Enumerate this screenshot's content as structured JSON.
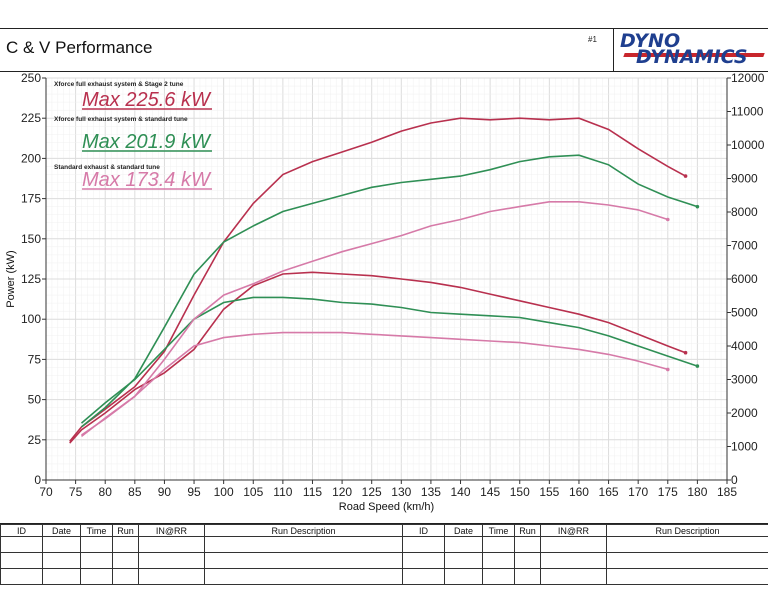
{
  "header": {
    "title": "C & V Performance",
    "run_number": "#1",
    "logo_line1": "DYNO",
    "logo_line2": "DYNAMICS"
  },
  "chart_data": {
    "type": "line",
    "title": "",
    "xlabel": "Road Speed (km/h)",
    "ylabel": "Power (kW)",
    "xlim": [
      70,
      185
    ],
    "ylim": [
      0,
      250
    ],
    "y2lim": [
      0,
      12000
    ],
    "x_ticks": [
      70,
      75,
      80,
      85,
      90,
      95,
      100,
      105,
      110,
      115,
      120,
      125,
      130,
      135,
      140,
      145,
      150,
      155,
      160,
      165,
      170,
      175,
      180,
      185
    ],
    "y_ticks": [
      0,
      25,
      50,
      75,
      100,
      125,
      150,
      175,
      200,
      225,
      250
    ],
    "y2_ticks": [
      0,
      1000,
      2000,
      3000,
      4000,
      5000,
      6000,
      7000,
      8000,
      9000,
      10000,
      11000,
      12000
    ],
    "grid": true,
    "legend": "top-left",
    "series": [
      {
        "name": "Xforce full exhaust system & Stage 2 tune",
        "max_label": "Max 225.6 kW",
        "color": "#b8304e",
        "power": [
          [
            74,
            24
          ],
          [
            76,
            33
          ],
          [
            80,
            44
          ],
          [
            85,
            58
          ],
          [
            90,
            80
          ],
          [
            95,
            115
          ],
          [
            100,
            148
          ],
          [
            105,
            172
          ],
          [
            110,
            190
          ],
          [
            115,
            198
          ],
          [
            120,
            204
          ],
          [
            125,
            210
          ],
          [
            130,
            217
          ],
          [
            135,
            222
          ],
          [
            140,
            225
          ],
          [
            145,
            224
          ],
          [
            150,
            225
          ],
          [
            155,
            224
          ],
          [
            160,
            225
          ],
          [
            165,
            218
          ],
          [
            170,
            206
          ],
          [
            175,
            195
          ],
          [
            178,
            189
          ]
        ],
        "second": [
          [
            74,
            1100
          ],
          [
            76,
            1500
          ],
          [
            80,
            2000
          ],
          [
            85,
            2700
          ],
          [
            90,
            3200
          ],
          [
            95,
            3900
          ],
          [
            100,
            5100
          ],
          [
            105,
            5800
          ],
          [
            110,
            6150
          ],
          [
            115,
            6200
          ],
          [
            120,
            6150
          ],
          [
            125,
            6100
          ],
          [
            130,
            6000
          ],
          [
            135,
            5900
          ],
          [
            140,
            5750
          ],
          [
            145,
            5550
          ],
          [
            150,
            5350
          ],
          [
            155,
            5150
          ],
          [
            160,
            4950
          ],
          [
            165,
            4700
          ],
          [
            170,
            4350
          ],
          [
            175,
            4000
          ],
          [
            178,
            3800
          ]
        ]
      },
      {
        "name": "Xforce full exhaust system & standard tune",
        "max_label": "Max 201.9 kW",
        "color": "#2f8f55",
        "power": [
          [
            76,
            33
          ],
          [
            80,
            45
          ],
          [
            85,
            63
          ],
          [
            90,
            95
          ],
          [
            95,
            128
          ],
          [
            100,
            148
          ],
          [
            105,
            158
          ],
          [
            110,
            167
          ],
          [
            115,
            172
          ],
          [
            120,
            177
          ],
          [
            125,
            182
          ],
          [
            130,
            185
          ],
          [
            135,
            187
          ],
          [
            140,
            189
          ],
          [
            145,
            193
          ],
          [
            150,
            198
          ],
          [
            155,
            201
          ],
          [
            160,
            202
          ],
          [
            165,
            196
          ],
          [
            170,
            184
          ],
          [
            175,
            176
          ],
          [
            180,
            170
          ]
        ],
        "second": [
          [
            76,
            1700
          ],
          [
            80,
            2300
          ],
          [
            85,
            3000
          ],
          [
            90,
            3900
          ],
          [
            95,
            4800
          ],
          [
            100,
            5300
          ],
          [
            105,
            5450
          ],
          [
            110,
            5450
          ],
          [
            115,
            5400
          ],
          [
            120,
            5300
          ],
          [
            125,
            5250
          ],
          [
            130,
            5150
          ],
          [
            135,
            5000
          ],
          [
            140,
            4950
          ],
          [
            145,
            4900
          ],
          [
            150,
            4850
          ],
          [
            155,
            4700
          ],
          [
            160,
            4550
          ],
          [
            165,
            4300
          ],
          [
            170,
            4000
          ],
          [
            175,
            3700
          ],
          [
            180,
            3400
          ]
        ]
      },
      {
        "name": "Standard exhaust & standard tune",
        "max_label": "Max 173.4 kW",
        "color": "#d67aa8",
        "power": [
          [
            76,
            28
          ],
          [
            80,
            38
          ],
          [
            85,
            52
          ],
          [
            90,
            75
          ],
          [
            95,
            100
          ],
          [
            100,
            115
          ],
          [
            105,
            122
          ],
          [
            110,
            130
          ],
          [
            115,
            136
          ],
          [
            120,
            142
          ],
          [
            125,
            147
          ],
          [
            130,
            152
          ],
          [
            135,
            158
          ],
          [
            140,
            162
          ],
          [
            145,
            167
          ],
          [
            150,
            170
          ],
          [
            155,
            173
          ],
          [
            160,
            173
          ],
          [
            165,
            171
          ],
          [
            170,
            168
          ],
          [
            175,
            162
          ]
        ],
        "second": [
          [
            76,
            1300
          ],
          [
            80,
            1850
          ],
          [
            85,
            2500
          ],
          [
            90,
            3300
          ],
          [
            95,
            4000
          ],
          [
            100,
            4250
          ],
          [
            105,
            4350
          ],
          [
            110,
            4400
          ],
          [
            115,
            4400
          ],
          [
            120,
            4400
          ],
          [
            125,
            4350
          ],
          [
            130,
            4300
          ],
          [
            135,
            4250
          ],
          [
            140,
            4200
          ],
          [
            145,
            4150
          ],
          [
            150,
            4100
          ],
          [
            155,
            4000
          ],
          [
            160,
            3900
          ],
          [
            165,
            3750
          ],
          [
            170,
            3550
          ],
          [
            175,
            3300
          ]
        ]
      }
    ]
  },
  "runs_table": {
    "headers": [
      "ID",
      "Date",
      "Time",
      "Run",
      "IN@RR",
      "Run Description",
      "ID",
      "Date",
      "Time",
      "Run",
      "IN@RR",
      "Run Description"
    ]
  }
}
